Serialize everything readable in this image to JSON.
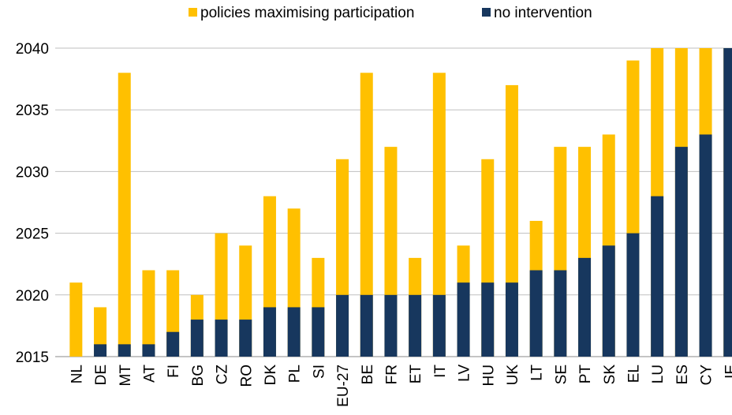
{
  "chart_data": {
    "type": "bar",
    "overlap": true,
    "categories": [
      "NL",
      "DE",
      "MT",
      "AT",
      "FI",
      "BG",
      "CZ",
      "RO",
      "DK",
      "PL",
      "SI",
      "EU-27",
      "BE",
      "FR",
      "ET",
      "IT",
      "LV",
      "HU",
      "UK",
      "LT",
      "SE",
      "PT",
      "SK",
      "EL",
      "LU",
      "ES",
      "CY",
      "IE"
    ],
    "series": [
      {
        "name": "policies maximising participation",
        "color": "#ffc000",
        "values": [
          2021,
          2019,
          2038,
          2022,
          2022,
          2020,
          2025,
          2024,
          2028,
          2027,
          2023,
          2031,
          2038,
          2032,
          2023,
          2038,
          2024,
          2031,
          2037,
          2026,
          2032,
          2032,
          2033,
          2039,
          2040,
          2040,
          2040,
          2040
        ]
      },
      {
        "name": "no intervention",
        "color": "#17375e",
        "values": [
          2015,
          2016,
          2016,
          2016,
          2017,
          2018,
          2018,
          2018,
          2019,
          2019,
          2019,
          2020,
          2020,
          2020,
          2020,
          2020,
          2021,
          2021,
          2021,
          2022,
          2022,
          2023,
          2024,
          2025,
          2028,
          2032,
          2033,
          2040
        ]
      }
    ],
    "ylim": [
      2015,
      2040
    ],
    "yticks": [
      2015,
      2020,
      2025,
      2030,
      2035,
      2040
    ],
    "grid": true,
    "legend": "top"
  }
}
